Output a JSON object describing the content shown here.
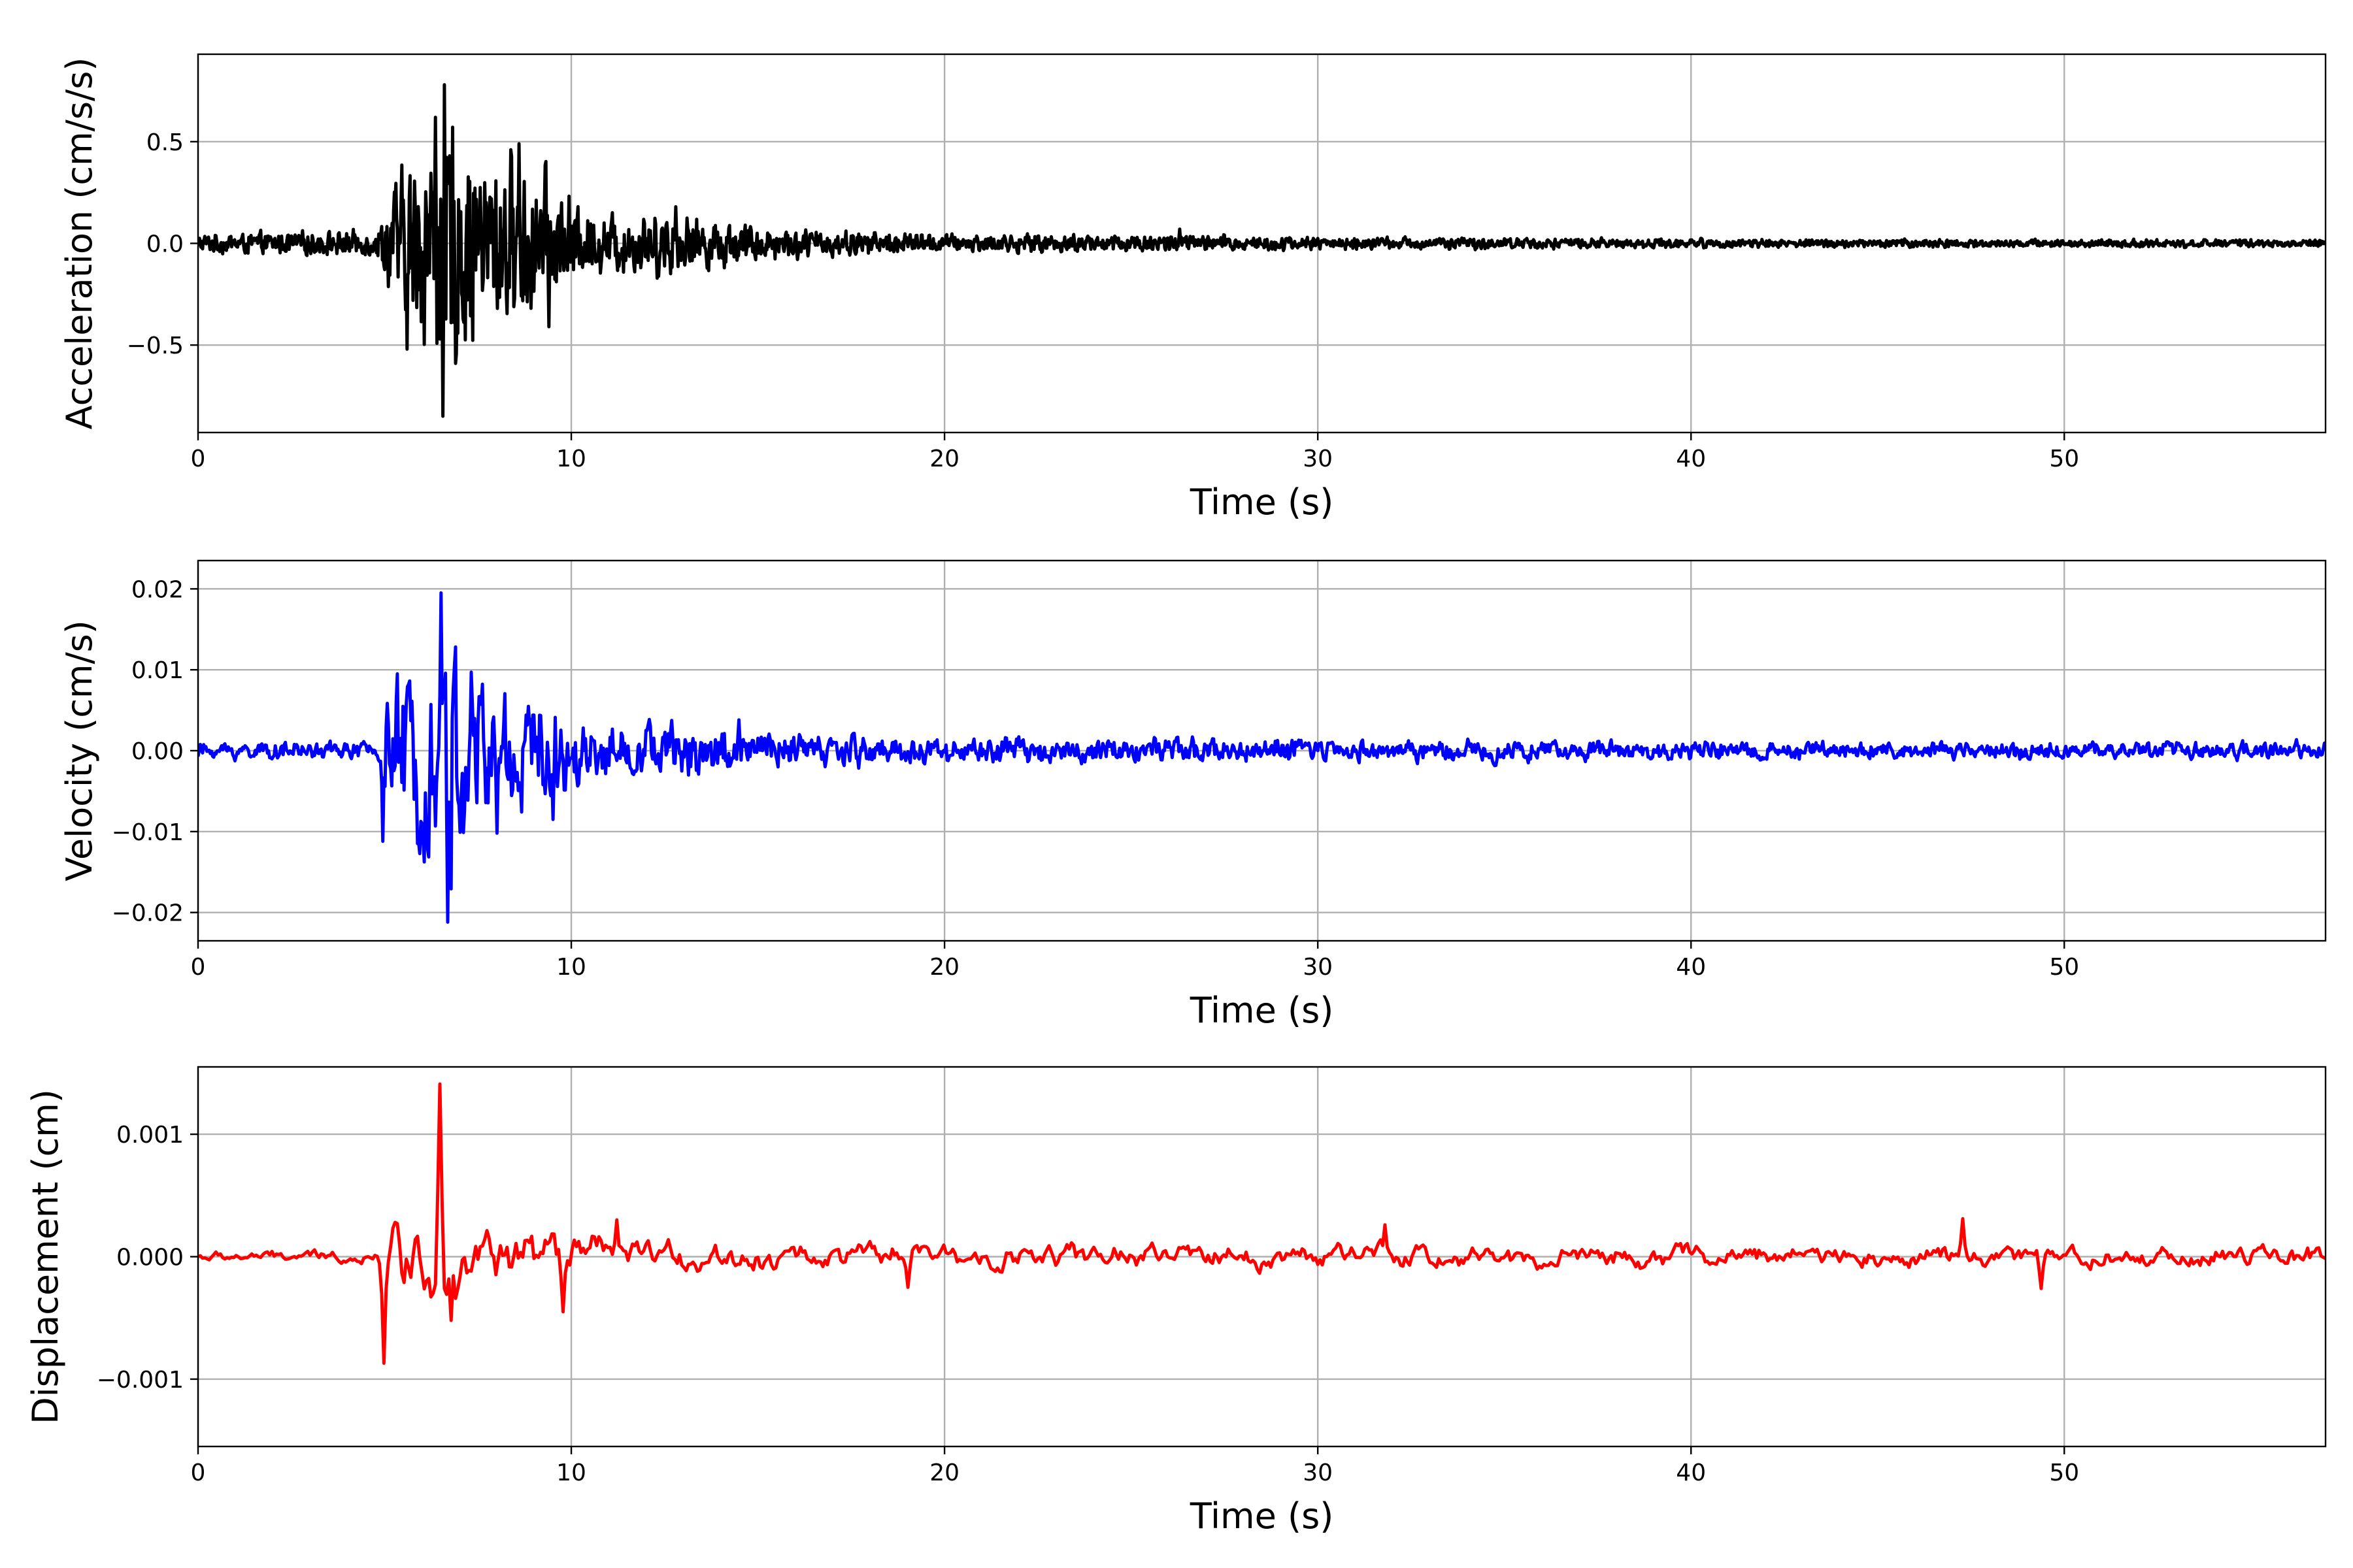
{
  "chart_data": [
    {
      "type": "line",
      "name": "acceleration",
      "xlabel": "Time (s)",
      "ylabel": "Acceleration (cm/s/s)",
      "xlim": [
        0,
        57
      ],
      "ylim": [
        -0.93,
        0.93
      ],
      "xticks": [
        0,
        10,
        20,
        30,
        40,
        50
      ],
      "xtick_labels": [
        "0",
        "10",
        "20",
        "30",
        "40",
        "50"
      ],
      "yticks": [
        -0.5,
        0.0,
        0.5
      ],
      "ytick_labels": [
        "−0.5",
        "0.0",
        "0.5"
      ],
      "grid": true,
      "color": "#000000",
      "envelope": [
        [
          0,
          0.05
        ],
        [
          4.8,
          0.07
        ],
        [
          5.2,
          0.32
        ],
        [
          6,
          0.55
        ],
        [
          6.6,
          0.82
        ],
        [
          7.5,
          0.5
        ],
        [
          8.5,
          0.48
        ],
        [
          9.5,
          0.35
        ],
        [
          10.5,
          0.16
        ],
        [
          12.8,
          0.18
        ],
        [
          14,
          0.12
        ],
        [
          16,
          0.08
        ],
        [
          20,
          0.05
        ],
        [
          26,
          0.05
        ],
        [
          30,
          0.035
        ],
        [
          40,
          0.025
        ],
        [
          57,
          0.02
        ]
      ],
      "peaks": [
        [
          6.6,
          0.78
        ],
        [
          6.55,
          -0.85
        ],
        [
          6.35,
          0.62
        ],
        [
          5.6,
          -0.52
        ],
        [
          8.6,
          0.49
        ],
        [
          9.4,
          -0.41
        ],
        [
          12.8,
          0.18
        ],
        [
          14.1,
          -0.12
        ],
        [
          26.3,
          0.07
        ]
      ]
    },
    {
      "type": "line",
      "name": "velocity",
      "xlabel": "Time (s)",
      "ylabel": "Velocity (cm/s)",
      "xlim": [
        0,
        57
      ],
      "ylim": [
        -0.0235,
        0.0235
      ],
      "xticks": [
        0,
        10,
        20,
        30,
        40,
        50
      ],
      "xtick_labels": [
        "0",
        "10",
        "20",
        "30",
        "40",
        "50"
      ],
      "yticks": [
        -0.02,
        -0.01,
        0.0,
        0.01,
        0.02
      ],
      "ytick_labels": [
        "−0.02",
        "−0.01",
        "0.00",
        "0.01",
        "0.02"
      ],
      "grid": true,
      "color": "#0000ff",
      "envelope": [
        [
          0,
          0.0012
        ],
        [
          4.8,
          0.0014
        ],
        [
          5.0,
          0.009
        ],
        [
          6.3,
          0.014
        ],
        [
          6.6,
          0.019
        ],
        [
          7.5,
          0.012
        ],
        [
          8.5,
          0.01
        ],
        [
          9.5,
          0.007
        ],
        [
          10.5,
          0.004
        ],
        [
          14,
          0.004
        ],
        [
          15,
          0.003
        ],
        [
          20,
          0.002
        ],
        [
          30,
          0.0018
        ],
        [
          40,
          0.0013
        ],
        [
          57,
          0.0013
        ]
      ],
      "peaks": [
        [
          6.5,
          0.0195
        ],
        [
          6.7,
          -0.0212
        ],
        [
          4.95,
          -0.0112
        ],
        [
          8.0,
          -0.0102
        ],
        [
          9.5,
          -0.0085
        ],
        [
          14.5,
          0.0038
        ]
      ]
    },
    {
      "type": "line",
      "name": "displacement",
      "xlabel": "Time (s)",
      "ylabel": "Displacement (cm)",
      "xlim": [
        0,
        57
      ],
      "ylim": [
        -0.00155,
        0.00155
      ],
      "xticks": [
        0,
        10,
        20,
        30,
        40,
        50
      ],
      "xtick_labels": [
        "0",
        "10",
        "20",
        "30",
        "40",
        "50"
      ],
      "yticks": [
        -0.001,
        0.0,
        0.001
      ],
      "ytick_labels": [
        "−0.001",
        "0.000",
        "0.001"
      ],
      "grid": true,
      "color": "#ff0000",
      "envelope": [
        [
          0,
          6e-05
        ],
        [
          4.8,
          8e-05
        ],
        [
          5.0,
          0.0004
        ],
        [
          6.6,
          0.0005
        ],
        [
          7.5,
          0.0004
        ],
        [
          9,
          0.0003
        ],
        [
          10.5,
          0.00025
        ],
        [
          12,
          0.00018
        ],
        [
          20,
          0.00015
        ],
        [
          30,
          0.00016
        ],
        [
          40,
          0.00014
        ],
        [
          57,
          0.00013
        ]
      ],
      "peaks": [
        [
          4.98,
          -0.00087
        ],
        [
          6.5,
          0.00141
        ],
        [
          6.8,
          -0.00052
        ],
        [
          9.8,
          -0.00045
        ],
        [
          11.2,
          0.0003
        ],
        [
          19,
          -0.00025
        ],
        [
          47.3,
          0.00031
        ],
        [
          49.4,
          -0.00026
        ],
        [
          31.8,
          0.00026
        ]
      ]
    }
  ]
}
